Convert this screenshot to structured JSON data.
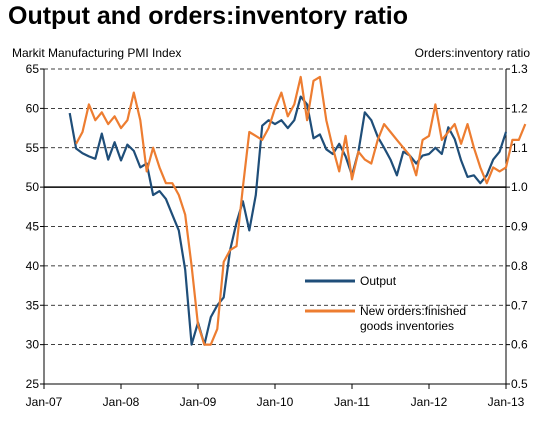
{
  "title": "Output and orders:inventory ratio",
  "chart_data": {
    "type": "line",
    "left_axis_label": "Markit Manufacturing PMI Index",
    "right_axis_label": "Orders:inventory ratio",
    "x_ticks": [
      "Jan-07",
      "Jan-08",
      "Jan-09",
      "Jan-10",
      "Jan-11",
      "Jan-12",
      "Jan-13"
    ],
    "x_range": [
      0,
      72
    ],
    "left_ticks": [
      25,
      30,
      35,
      40,
      45,
      50,
      55,
      60,
      65
    ],
    "left_range": [
      25,
      65
    ],
    "right_ticks": [
      "0.5",
      "0.6",
      "0.7",
      "0.8",
      "0.9",
      "1.0",
      "1.1",
      "1.2",
      "1.3"
    ],
    "right_range": [
      0.5,
      1.3
    ],
    "reference_line": 50,
    "grid": "dashed horizontal",
    "legend_position": "lower-center",
    "series": [
      {
        "name": "Output",
        "axis": "left",
        "color": "#1f4e79",
        "start_month": 4,
        "values": [
          59.4,
          54.9,
          54.3,
          53.9,
          53.6,
          56.8,
          53.5,
          55.7,
          53.4,
          55.4,
          54.6,
          52.5,
          53.0,
          49.0,
          49.5,
          48.5,
          46.5,
          44.5,
          39.5,
          30.0,
          32.8,
          30.0,
          33.5,
          35.0,
          36.0,
          42.0,
          45.5,
          48.2,
          44.5,
          49.0,
          57.8,
          58.5,
          58.0,
          58.5,
          57.5,
          58.5,
          61.5,
          60.5,
          56.2,
          56.7,
          54.8,
          54.2,
          55.5,
          53.9,
          51.5,
          54.5,
          59.5,
          58.5,
          56.4,
          55.0,
          53.5,
          51.5,
          54.5,
          54.0,
          53.0,
          54.0,
          54.2,
          55.0,
          54.2,
          57.6,
          56.1,
          53.4,
          51.3,
          51.5,
          50.5,
          51.5,
          53.5,
          54.5,
          57.0
        ]
      },
      {
        "name": "New orders:finished goods inventories",
        "axis": "right",
        "color": "#ed7d31",
        "start_month": 5,
        "values": [
          1.11,
          1.14,
          1.21,
          1.17,
          1.19,
          1.16,
          1.18,
          1.15,
          1.17,
          1.24,
          1.17,
          1.04,
          1.1,
          1.05,
          1.01,
          1.01,
          0.98,
          0.93,
          0.8,
          0.65,
          0.6,
          0.6,
          0.64,
          0.81,
          0.84,
          0.85,
          1.0,
          1.14,
          1.13,
          1.12,
          1.15,
          1.2,
          1.24,
          1.18,
          1.21,
          1.28,
          1.17,
          1.27,
          1.28,
          1.17,
          1.1,
          1.04,
          1.13,
          1.02,
          1.09,
          1.07,
          1.06,
          1.12,
          1.16,
          1.14,
          1.12,
          1.1,
          1.08,
          1.03,
          1.12,
          1.13,
          1.21,
          1.12,
          1.14,
          1.16,
          1.11,
          1.16,
          1.1,
          1.05,
          1.01,
          1.05,
          1.04,
          1.05,
          1.12,
          1.12,
          1.16
        ]
      }
    ]
  }
}
